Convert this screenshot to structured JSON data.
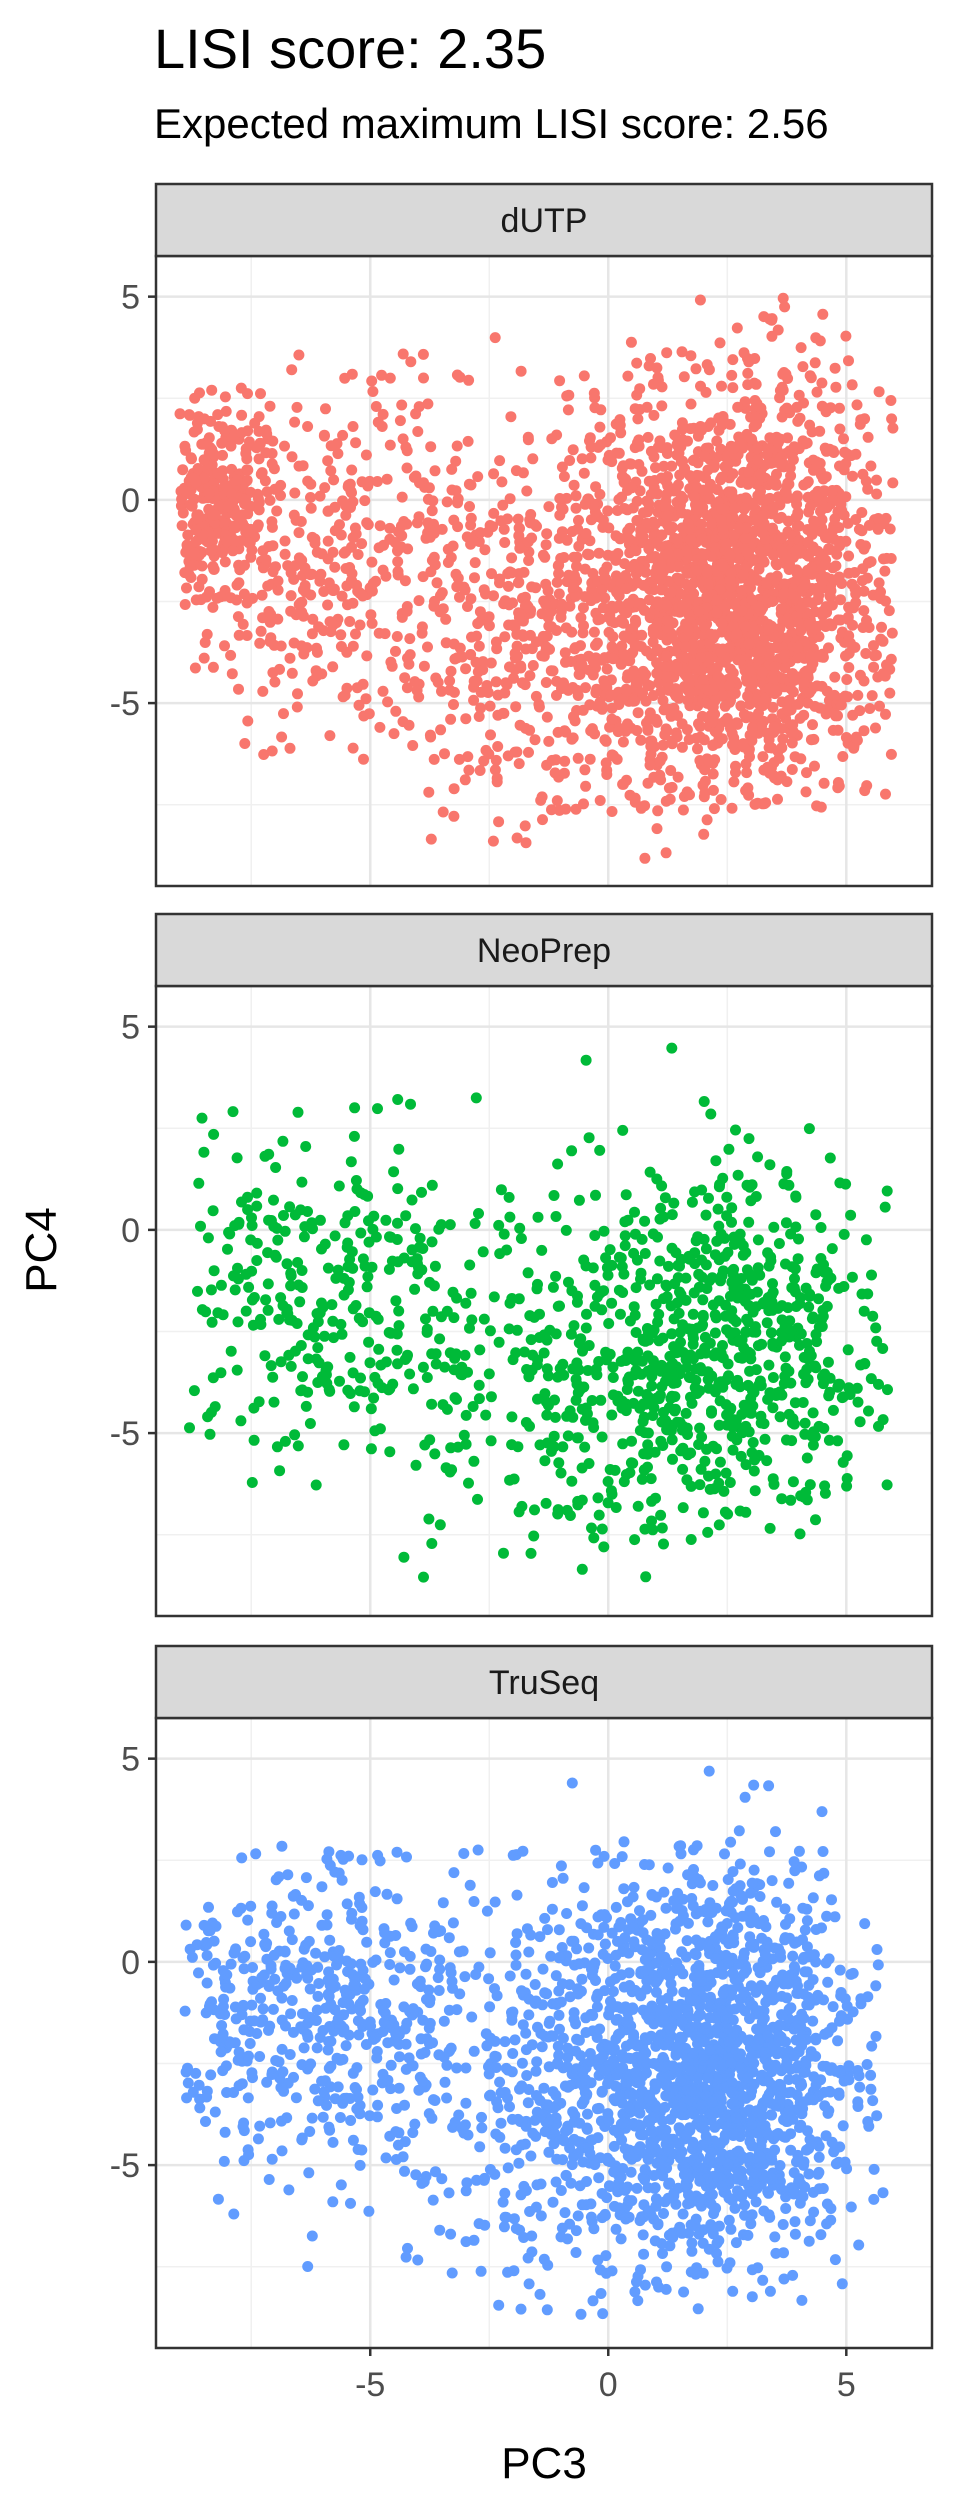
{
  "chart_data": {
    "type": "scatter",
    "title": "LISI score: 2.35",
    "subtitle": "Expected maximum LISI score: 2.56",
    "xlabel": "PC3",
    "ylabel": "PC4",
    "xlim": [
      -9.5,
      6.8
    ],
    "ylim": [
      -9.5,
      6.0
    ],
    "xticks": [
      -5,
      0,
      5
    ],
    "xtick_labels": [
      "-5",
      "0",
      "5"
    ],
    "yticks": [
      -5,
      0,
      5
    ],
    "ytick_labels": [
      "-5",
      "0",
      "5"
    ],
    "grid": true,
    "legend": "none",
    "facets": [
      {
        "name": "dUTP",
        "color": "#F8766D",
        "n_points": 3200,
        "clusters": [
          {
            "cx": 2.8,
            "cy": -2.2,
            "sx": 1.6,
            "sy": 2.6,
            "weight": 0.6,
            "xmin": -1.0,
            "xmax": 6.0,
            "ymin": -7.6,
            "ymax": 5.3
          },
          {
            "cx": -0.8,
            "cy": -3.0,
            "sx": 2.0,
            "sy": 2.6,
            "weight": 0.2,
            "xmin": -4.5,
            "xmax": 3.0,
            "ymin": -8.9,
            "ymax": 4.0
          },
          {
            "cx": -5.8,
            "cy": -1.5,
            "sx": 1.8,
            "sy": 2.2,
            "weight": 0.12,
            "xmin": -9.0,
            "xmax": -2.5,
            "ymin": -7.2,
            "ymax": 3.6
          },
          {
            "cx": -8.2,
            "cy": 0.0,
            "sx": 0.6,
            "sy": 1.2,
            "weight": 0.08,
            "xmin": -9.0,
            "xmax": -7.0,
            "ymin": -3.0,
            "ymax": 3.0
          }
        ]
      },
      {
        "name": "NeoPrep",
        "color": "#00BA38",
        "n_points": 1200,
        "clusters": [
          {
            "cx": 2.9,
            "cy": -2.8,
            "sx": 1.5,
            "sy": 2.3,
            "weight": 0.45,
            "xmin": -0.5,
            "xmax": 5.9,
            "ymin": -7.5,
            "ymax": 4.7
          },
          {
            "cx": -0.3,
            "cy": -3.6,
            "sx": 1.9,
            "sy": 2.4,
            "weight": 0.3,
            "xmin": -4.5,
            "xmax": 3.0,
            "ymin": -8.6,
            "ymax": 4.5
          },
          {
            "cx": -6.0,
            "cy": -1.8,
            "sx": 1.8,
            "sy": 2.2,
            "weight": 0.25,
            "xmin": -9.0,
            "xmax": -3.0,
            "ymin": -8.2,
            "ymax": 3.5
          }
        ]
      },
      {
        "name": "TruSeq",
        "color": "#619CFF",
        "n_points": 2400,
        "clusters": [
          {
            "cx": 2.4,
            "cy": -2.6,
            "sx": 1.6,
            "sy": 2.6,
            "weight": 0.55,
            "xmin": -1.5,
            "xmax": 5.8,
            "ymin": -8.5,
            "ymax": 5.1
          },
          {
            "cx": -0.6,
            "cy": -3.4,
            "sx": 1.9,
            "sy": 2.7,
            "weight": 0.25,
            "xmin": -4.5,
            "xmax": 3.5,
            "ymin": -8.7,
            "ymax": 3.0
          },
          {
            "cx": -6.2,
            "cy": -1.2,
            "sx": 1.8,
            "sy": 2.0,
            "weight": 0.2,
            "xmin": -9.0,
            "xmax": -3.0,
            "ymin": -8.4,
            "ymax": 2.9
          }
        ]
      }
    ]
  }
}
